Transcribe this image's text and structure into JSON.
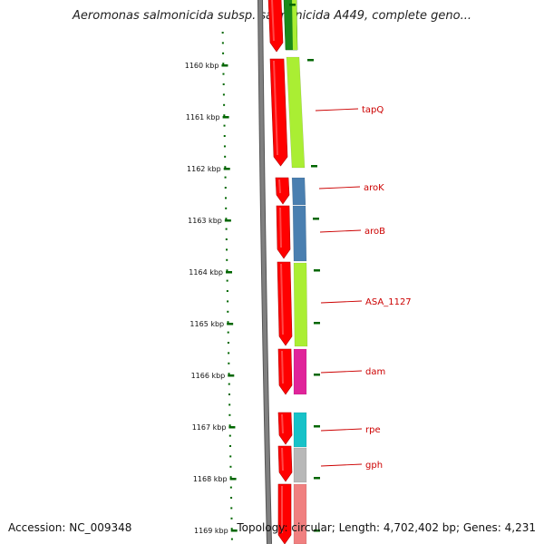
{
  "title": "Aeromonas salmonicida subsp. salmonicida A449, complete geno...",
  "accession": "Accession: NC_009348",
  "summary": "Topology: circular; Length: 4,702,402 bp; Genes: 4,231",
  "ticks": [
    {
      "label": "1160 kbp"
    },
    {
      "label": "1161 kbp"
    },
    {
      "label": "1162 kbp"
    },
    {
      "label": "1163 kbp"
    },
    {
      "label": "1164 kbp"
    },
    {
      "label": "1165 kbp"
    },
    {
      "label": "1166 kbp"
    },
    {
      "label": "1167 kbp"
    },
    {
      "label": "1168 kbp"
    },
    {
      "label": "1169 kbp"
    }
  ],
  "genes": [
    {
      "label": "tapQ",
      "color": "#aaee33"
    },
    {
      "label": "aroK",
      "color": "#4a7fb0"
    },
    {
      "label": "aroB",
      "color": "#4a7fb0"
    },
    {
      "label": "ASA_1127",
      "color": "#aaee33"
    },
    {
      "label": "dam",
      "color": "#e0249a"
    },
    {
      "label": "rpe",
      "color": "#17c2c8"
    },
    {
      "label": "gph",
      "color": "#b8b8b8"
    }
  ],
  "colors": {
    "cds": "#ff0000",
    "backbone": "#808080",
    "tick": "#006600",
    "label": "#cc0000"
  }
}
